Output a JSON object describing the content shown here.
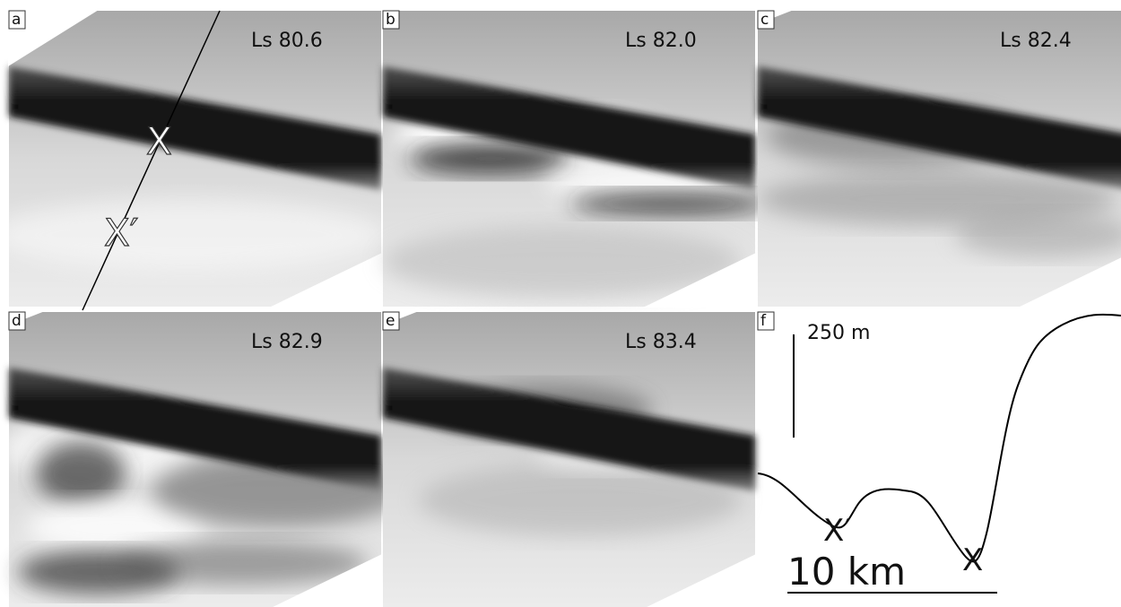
{
  "panels": [
    {
      "letter": "a",
      "label": "Ls 80.6"
    },
    {
      "letter": "b",
      "label": "Ls 82.0"
    },
    {
      "letter": "c",
      "label": "Ls 82.4"
    },
    {
      "letter": "d",
      "label": "Ls 82.9"
    },
    {
      "letter": "e",
      "label": "Ls 83.4"
    },
    {
      "letter": "f"
    }
  ],
  "profile_markers": {
    "x": "X",
    "x_prime": "X′"
  },
  "scale": {
    "vertical": "250 m",
    "horizontal": "10 km"
  }
}
